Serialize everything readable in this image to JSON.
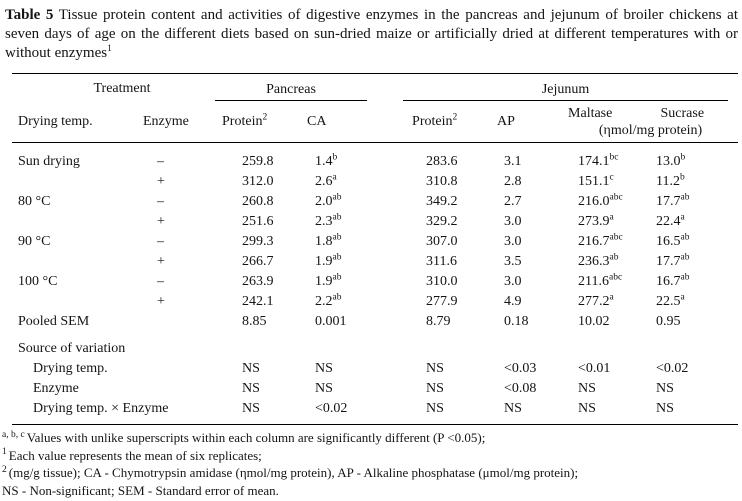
{
  "document": {
    "title": {
      "bold": "Table 5",
      "rest": " Tissue protein content and activities of digestive enzymes in the pancreas and jejunum of broiler chickens at seven days of age on the different diets based on sun-dried maize or artificially dried at different temperatures with or without enzymes",
      "sup": "1"
    }
  },
  "table": {
    "group_header": {
      "treatment": "Treatment",
      "pancreas": "Pancreas",
      "jejunum": "Jejunum"
    },
    "col_header": {
      "drying_temp": "Drying temp.",
      "enzyme": "Enzyme",
      "protein_pancreas": "Protein",
      "protein_jejunum": "Protein",
      "protein_sup": "2",
      "ca": "CA",
      "ap": "AP",
      "maltase": "Maltase",
      "sucrase": "Sucrase",
      "unit": "(ηmol/mg protein)"
    },
    "rows": [
      {
        "label": "Sun drying",
        "enzyme": "–",
        "values": [
          {
            "v": "259.8"
          },
          {
            "v": "1.4",
            "s": "b"
          },
          {
            "v": "283.6"
          },
          {
            "v": "3.1"
          },
          {
            "v": "174.1",
            "s": "bc"
          },
          {
            "v": "13.0",
            "s": "b"
          }
        ]
      },
      {
        "label": "",
        "enzyme": "+",
        "values": [
          {
            "v": "312.0"
          },
          {
            "v": "2.6",
            "s": "a"
          },
          {
            "v": "310.8"
          },
          {
            "v": "2.8"
          },
          {
            "v": "151.1",
            "s": "c"
          },
          {
            "v": "11.2",
            "s": "b"
          }
        ]
      },
      {
        "label": "80 °C",
        "enzyme": "–",
        "values": [
          {
            "v": "260.8"
          },
          {
            "v": "2.0",
            "s": "ab"
          },
          {
            "v": "349.2"
          },
          {
            "v": "2.7"
          },
          {
            "v": "216.0",
            "s": "abc"
          },
          {
            "v": "17.7",
            "s": "ab"
          }
        ]
      },
      {
        "label": "",
        "enzyme": "+",
        "values": [
          {
            "v": "251.6"
          },
          {
            "v": "2.3",
            "s": "ab"
          },
          {
            "v": "329.2"
          },
          {
            "v": "3.0"
          },
          {
            "v": "273.9",
            "s": "a"
          },
          {
            "v": "22.4",
            "s": "a"
          }
        ]
      },
      {
        "label": "90 °C",
        "enzyme": "–",
        "values": [
          {
            "v": "299.3"
          },
          {
            "v": "1.8",
            "s": "ab"
          },
          {
            "v": "307.0"
          },
          {
            "v": "3.0"
          },
          {
            "v": "216.7",
            "s": "abc"
          },
          {
            "v": "16.5",
            "s": "ab"
          }
        ]
      },
      {
        "label": "",
        "enzyme": "+",
        "values": [
          {
            "v": "266.7"
          },
          {
            "v": "1.9",
            "s": "ab"
          },
          {
            "v": "311.6"
          },
          {
            "v": "3.5"
          },
          {
            "v": "236.3",
            "s": "ab"
          },
          {
            "v": "17.7",
            "s": "ab"
          }
        ]
      },
      {
        "label": "100 °C",
        "enzyme": "–",
        "values": [
          {
            "v": "263.9"
          },
          {
            "v": "1.9",
            "s": "ab"
          },
          {
            "v": "310.0"
          },
          {
            "v": "3.0"
          },
          {
            "v": "211.6",
            "s": "abc"
          },
          {
            "v": "16.7",
            "s": "ab"
          }
        ]
      },
      {
        "label": "",
        "enzyme": "+",
        "values": [
          {
            "v": "242.1"
          },
          {
            "v": "2.2",
            "s": "ab"
          },
          {
            "v": "277.9"
          },
          {
            "v": "4.9"
          },
          {
            "v": "277.2",
            "s": "a"
          },
          {
            "v": "22.5",
            "s": "a"
          }
        ]
      },
      {
        "label": "Pooled SEM",
        "enzyme": "",
        "values": [
          {
            "v": "8.85"
          },
          {
            "v": "0.001"
          },
          {
            "v": "8.79"
          },
          {
            "v": "0.18"
          },
          {
            "v": "10.02"
          },
          {
            "v": "0.95"
          }
        ]
      },
      {
        "section": "Source of variation"
      },
      {
        "label": "Drying temp.",
        "indent": true,
        "enzyme": "",
        "values": [
          {
            "v": "NS"
          },
          {
            "v": "NS"
          },
          {
            "v": "NS"
          },
          {
            "v": "<0.03"
          },
          {
            "v": "<0.01"
          },
          {
            "v": "<0.02"
          }
        ]
      },
      {
        "label": "Enzyme",
        "indent": true,
        "enzyme": "",
        "values": [
          {
            "v": "NS"
          },
          {
            "v": "NS"
          },
          {
            "v": "NS"
          },
          {
            "v": "<0.08"
          },
          {
            "v": "NS"
          },
          {
            "v": "NS"
          }
        ]
      },
      {
        "label": "Drying temp. × Enzyme",
        "indent": true,
        "enzyme": "",
        "values": [
          {
            "v": "NS"
          },
          {
            "v": "<0.02"
          },
          {
            "v": "NS"
          },
          {
            "v": "NS"
          },
          {
            "v": "NS"
          },
          {
            "v": "NS"
          }
        ]
      }
    ]
  },
  "footnotes": [
    {
      "sup": "a, b, c",
      "text": "Values with unlike superscripts within each column are significantly different (P <0.05);"
    },
    {
      "sup": "1",
      "text": "Each value represents the mean of six replicates;"
    },
    {
      "sup": "2",
      "text": "(mg/g tissue); CA - Chymotrypsin amidase (ηmol/mg protein), AP - Alkaline phosphatase (μmol/mg protein);"
    },
    {
      "sup": "",
      "text": "NS - Non-significant; SEM - Standard error of mean."
    }
  ]
}
